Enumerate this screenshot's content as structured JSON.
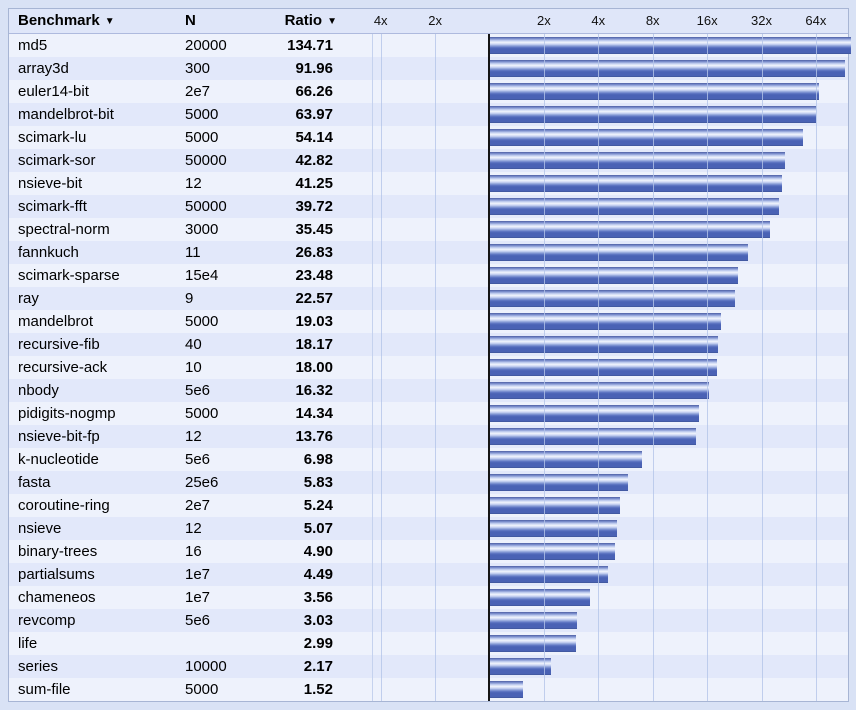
{
  "table": {
    "columns": [
      {
        "label": "Benchmark",
        "sort_icon": "▼",
        "sorted": true
      },
      {
        "label": "N",
        "sort_icon": "",
        "sorted": false
      },
      {
        "label": "Ratio",
        "sort_icon": "▼",
        "sorted": true
      }
    ]
  },
  "chart_data": {
    "type": "bar",
    "orientation": "horizontal",
    "x_scale": "log2",
    "xlabel": "",
    "ylabel": "",
    "legend": "none",
    "grid": "vertical",
    "axis_ticks": [
      {
        "label": "4x",
        "log2": -2
      },
      {
        "label": "2x",
        "log2": -1
      },
      {
        "label": "2x",
        "log2": 1
      },
      {
        "label": "4x",
        "log2": 2
      },
      {
        "label": "8x",
        "log2": 3
      },
      {
        "label": "16x",
        "log2": 4
      },
      {
        "label": "32x",
        "log2": 5
      },
      {
        "label": "64x",
        "log2": 6
      }
    ],
    "rows": [
      {
        "benchmark": "md5",
        "n": "20000",
        "ratio": "134.71"
      },
      {
        "benchmark": "array3d",
        "n": "300",
        "ratio": "91.96"
      },
      {
        "benchmark": "euler14-bit",
        "n": "2e7",
        "ratio": "66.26"
      },
      {
        "benchmark": "mandelbrot-bit",
        "n": "5000",
        "ratio": "63.97"
      },
      {
        "benchmark": "scimark-lu",
        "n": "5000",
        "ratio": "54.14"
      },
      {
        "benchmark": "scimark-sor",
        "n": "50000",
        "ratio": "42.82"
      },
      {
        "benchmark": "nsieve-bit",
        "n": "12",
        "ratio": "41.25"
      },
      {
        "benchmark": "scimark-fft",
        "n": "50000",
        "ratio": "39.72"
      },
      {
        "benchmark": "spectral-norm",
        "n": "3000",
        "ratio": "35.45"
      },
      {
        "benchmark": "fannkuch",
        "n": "11",
        "ratio": "26.83"
      },
      {
        "benchmark": "scimark-sparse",
        "n": "15e4",
        "ratio": "23.48"
      },
      {
        "benchmark": "ray",
        "n": "9",
        "ratio": "22.57"
      },
      {
        "benchmark": "mandelbrot",
        "n": "5000",
        "ratio": "19.03"
      },
      {
        "benchmark": "recursive-fib",
        "n": "40",
        "ratio": "18.17"
      },
      {
        "benchmark": "recursive-ack",
        "n": "10",
        "ratio": "18.00"
      },
      {
        "benchmark": "nbody",
        "n": "5e6",
        "ratio": "16.32"
      },
      {
        "benchmark": "pidigits-nogmp",
        "n": "5000",
        "ratio": "14.34"
      },
      {
        "benchmark": "nsieve-bit-fp",
        "n": "12",
        "ratio": "13.76"
      },
      {
        "benchmark": "k-nucleotide",
        "n": "5e6",
        "ratio": "6.98"
      },
      {
        "benchmark": "fasta",
        "n": "25e6",
        "ratio": "5.83"
      },
      {
        "benchmark": "coroutine-ring",
        "n": "2e7",
        "ratio": "5.24"
      },
      {
        "benchmark": "nsieve",
        "n": "12",
        "ratio": "5.07"
      },
      {
        "benchmark": "binary-trees",
        "n": "16",
        "ratio": "4.90"
      },
      {
        "benchmark": "partialsums",
        "n": "1e7",
        "ratio": "4.49"
      },
      {
        "benchmark": "chameneos",
        "n": "1e7",
        "ratio": "3.56"
      },
      {
        "benchmark": "revcomp",
        "n": "5e6",
        "ratio": "3.03"
      },
      {
        "benchmark": "life",
        "n": "",
        "ratio": "2.99"
      },
      {
        "benchmark": "series",
        "n": "10000",
        "ratio": "2.17"
      },
      {
        "benchmark": "sum-file",
        "n": "5000",
        "ratio": "1.52"
      }
    ]
  },
  "colors": {
    "page-bg": "#d9e2f5",
    "header-bg": "#dfe6f9",
    "row-light": "#eef2fc",
    "row-dark": "#e2e8fa",
    "bar-color": "#4a62b5",
    "grid-color": "#c5d2ee",
    "axis-color": "#151515"
  }
}
